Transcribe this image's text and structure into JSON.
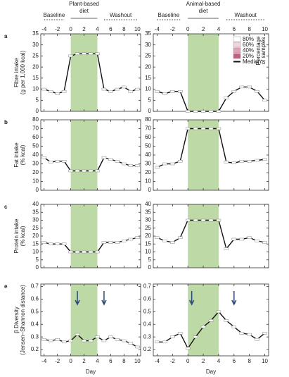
{
  "figure": {
    "column_titles": [
      [
        "Plant-based",
        "diet"
      ],
      [
        "Animal-based",
        "diet"
      ]
    ],
    "baseline": "Baseline",
    "washout": "Washout",
    "x_label": "Day"
  },
  "chart_data": [
    {
      "type": "line",
      "panel_label": "a",
      "y_label": [
        "Fibre intake",
        "(g per 1,000 kcal)"
      ],
      "x": [
        -4,
        -3,
        -2,
        -1,
        0,
        1,
        2,
        3,
        4,
        5,
        6,
        7,
        8,
        9,
        10
      ],
      "series": [
        {
          "name": "Median",
          "color": "#111",
          "values": [
            10,
            9,
            8,
            9,
            25,
            26,
            26,
            26,
            26,
            10,
            9,
            10,
            11,
            9,
            10
          ]
        }
      ],
      "xlim": [
        -4.5,
        10.5
      ],
      "xticks": [
        -4,
        -2,
        0,
        2,
        4,
        6,
        8,
        10
      ],
      "ylim": [
        0,
        35
      ],
      "yticks": [
        0,
        5,
        10,
        15,
        20,
        25,
        30,
        35
      ],
      "diet_days": [
        0,
        4
      ],
      "shade": "#bcd9a6"
    },
    {
      "type": "line",
      "x": [
        -4,
        -3,
        -2,
        -1,
        0,
        1,
        2,
        3,
        4,
        5,
        6,
        7,
        8,
        9,
        10
      ],
      "series": [
        {
          "name": "Median",
          "color": "#111",
          "values": [
            9,
            8,
            9,
            9,
            0,
            0,
            0,
            0,
            0,
            6,
            9,
            11,
            11,
            9,
            5
          ]
        }
      ],
      "xlim": [
        -4.5,
        10.5
      ],
      "xticks": [
        -4,
        -2,
        0,
        2,
        4,
        6,
        8,
        10
      ],
      "ylim": [
        0,
        35
      ],
      "yticks": [
        0,
        5,
        10,
        15,
        20,
        25,
        30,
        35
      ],
      "diet_days": [
        0,
        4
      ],
      "shade": "#bcd9a6",
      "legend": {
        "title": [
          "Percentage",
          "of samples"
        ],
        "items": [
          {
            "label": "80%",
            "color": "#ffffff"
          },
          {
            "label": "60%",
            "color": "#f0d4dc"
          },
          {
            "label": "40%",
            "color": "#dfa3b5"
          },
          {
            "label": "20%",
            "color": "#c0607e"
          },
          {
            "label": "Median",
            "color": "#111"
          }
        ]
      }
    },
    {
      "type": "line",
      "panel_label": "b",
      "y_label": [
        "Fat intake",
        "(% kcal)"
      ],
      "x": [
        -4,
        -3,
        -2,
        -1,
        0,
        1,
        2,
        3,
        4,
        5,
        6,
        7,
        8,
        9,
        10
      ],
      "series": [
        {
          "name": "Median",
          "color": "#111",
          "values": [
            37,
            32,
            33,
            33,
            22,
            22,
            22,
            22,
            22,
            37,
            35,
            33,
            30,
            28,
            28
          ]
        }
      ],
      "xlim": [
        -4.5,
        10.5
      ],
      "xticks": [
        -4,
        -2,
        0,
        2,
        4,
        6,
        8,
        10
      ],
      "ylim": [
        0,
        80
      ],
      "yticks": [
        0,
        10,
        20,
        30,
        40,
        50,
        60,
        70,
        80
      ],
      "diet_days": [
        0,
        4
      ],
      "shade": "#bcd9a6"
    },
    {
      "type": "line",
      "x": [
        -4,
        -3,
        -2,
        -1,
        0,
        1,
        2,
        3,
        4,
        5,
        6,
        7,
        8,
        9,
        10
      ],
      "series": [
        {
          "name": "Median",
          "color": "#111",
          "values": [
            26,
            30,
            30,
            33,
            70,
            70,
            70,
            70,
            70,
            32,
            31,
            33,
            33,
            34,
            35
          ]
        }
      ],
      "xlim": [
        -4.5,
        10.5
      ],
      "xticks": [
        -4,
        -2,
        0,
        2,
        4,
        6,
        8,
        10
      ],
      "ylim": [
        0,
        80
      ],
      "yticks": [
        0,
        10,
        20,
        30,
        40,
        50,
        60,
        70,
        80
      ],
      "diet_days": [
        0,
        4
      ],
      "shade": "#bcd9a6"
    },
    {
      "type": "line",
      "panel_label": "c",
      "y_label": [
        "Protein intake",
        "(% kcal)"
      ],
      "x": [
        -4,
        -3,
        -2,
        -1,
        0,
        1,
        2,
        3,
        4,
        5,
        6,
        7,
        8,
        9,
        10
      ],
      "series": [
        {
          "name": "Median",
          "color": "#111",
          "values": [
            16,
            15,
            15,
            15,
            10,
            10,
            10,
            10,
            10,
            16,
            16,
            16,
            17,
            18,
            19
          ]
        }
      ],
      "xlim": [
        -4.5,
        10.5
      ],
      "xticks": [
        -4,
        -2,
        0,
        2,
        4,
        6,
        8,
        10
      ],
      "ylim": [
        0,
        40
      ],
      "yticks": [
        0,
        5,
        10,
        15,
        20,
        25,
        30,
        35,
        40
      ],
      "diet_days": [
        0,
        4
      ],
      "shade": "#bcd9a6"
    },
    {
      "type": "line",
      "x": [
        -4,
        -3,
        -2,
        -1,
        0,
        1,
        2,
        3,
        4,
        5,
        6,
        7,
        8,
        9,
        10
      ],
      "series": [
        {
          "name": "Median",
          "color": "#111",
          "values": [
            19,
            17,
            16,
            19,
            30,
            30,
            30,
            30,
            30,
            12,
            18,
            18,
            19,
            17,
            16
          ]
        }
      ],
      "xlim": [
        -4.5,
        10.5
      ],
      "xticks": [
        -4,
        -2,
        0,
        2,
        4,
        6,
        8,
        10
      ],
      "ylim": [
        0,
        40
      ],
      "yticks": [
        0,
        5,
        10,
        15,
        20,
        25,
        30,
        35,
        40
      ],
      "diet_days": [
        0,
        4
      ],
      "shade": "#bcd9a6"
    },
    {
      "type": "line",
      "panel_label": "e",
      "y_label": [
        "β Diversity",
        "(Jensen–Shannon distance)"
      ],
      "x": [
        -4,
        -3,
        -2,
        -1,
        0,
        1,
        2,
        3,
        4,
        5,
        6,
        7,
        8,
        9,
        10
      ],
      "series": [
        {
          "name": "Median",
          "color": "#111",
          "values": [
            0.28,
            0.27,
            0.28,
            0.26,
            0.27,
            0.32,
            0.27,
            0.27,
            0.3,
            0.27,
            0.3,
            0.28,
            0.27,
            0.25,
            0.22
          ]
        }
      ],
      "xlim": [
        -4.5,
        10.5
      ],
      "xticks": [
        -4,
        -2,
        0,
        2,
        4,
        6,
        8,
        10
      ],
      "ylim": [
        0.15,
        0.72
      ],
      "yticks": [
        0.2,
        0.3,
        0.4,
        0.5,
        0.6,
        0.7
      ],
      "diet_days": [
        0,
        4
      ],
      "shade": "#bcd9a6",
      "arrow_days": [
        1,
        5
      ]
    },
    {
      "type": "line",
      "x": [
        -4,
        -3,
        -2,
        -1,
        0,
        1,
        2,
        3,
        4,
        5,
        6,
        7,
        8,
        9,
        10
      ],
      "series": [
        {
          "name": "Median",
          "color": "#111",
          "values": [
            0.26,
            0.26,
            0.3,
            0.33,
            0.21,
            0.3,
            0.38,
            0.43,
            0.5,
            0.43,
            0.38,
            0.33,
            0.32,
            0.28,
            0.33
          ]
        }
      ],
      "xlim": [
        -4.5,
        10.5
      ],
      "xticks": [
        -4,
        -2,
        0,
        2,
        4,
        6,
        8,
        10
      ],
      "ylim": [
        0.15,
        0.72
      ],
      "yticks": [
        0.2,
        0.3,
        0.4,
        0.5,
        0.6,
        0.7
      ],
      "diet_days": [
        0,
        4
      ],
      "shade": "#bcd9a6",
      "arrow_days": [
        0.5,
        6
      ]
    }
  ]
}
